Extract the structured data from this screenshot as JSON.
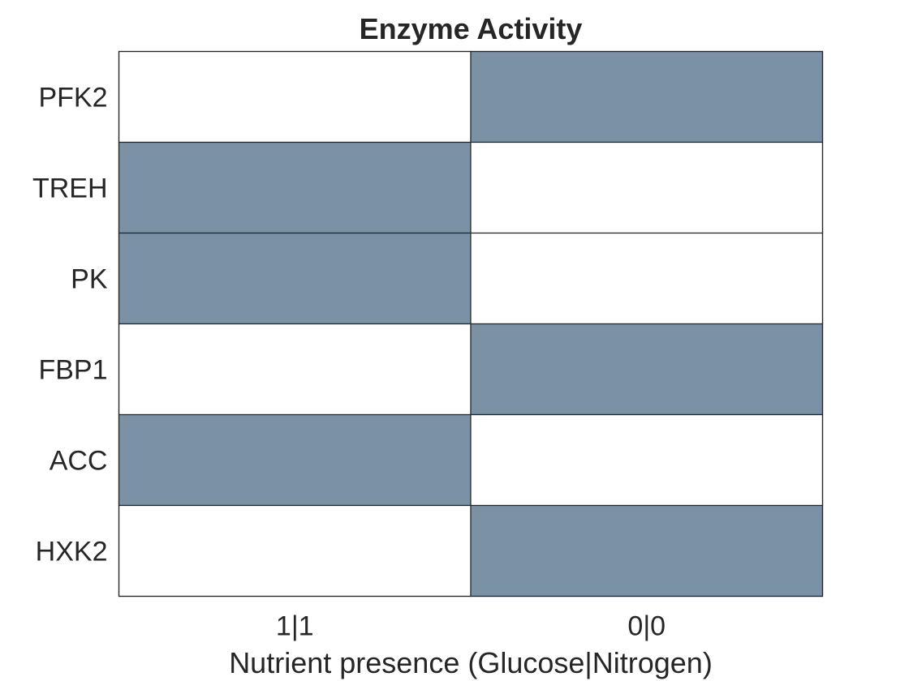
{
  "chart_data": {
    "type": "heatmap",
    "title": "Enzyme Activity",
    "xlabel": "Nutrient presence (Glucose|Nitrogen)",
    "ylabel": "",
    "x_categories": [
      "1|1",
      "0|0"
    ],
    "y_categories": [
      "PFK2",
      "TREH",
      "PK",
      "FBP1",
      "ACC",
      "HXK2"
    ],
    "values": [
      [
        0,
        1
      ],
      [
        1,
        0
      ],
      [
        1,
        0
      ],
      [
        0,
        1
      ],
      [
        1,
        0
      ],
      [
        0,
        1
      ]
    ],
    "colors": {
      "active": "#7b91a5",
      "inactive": "#ffffff",
      "grid": "#262626"
    },
    "legend": "none"
  }
}
